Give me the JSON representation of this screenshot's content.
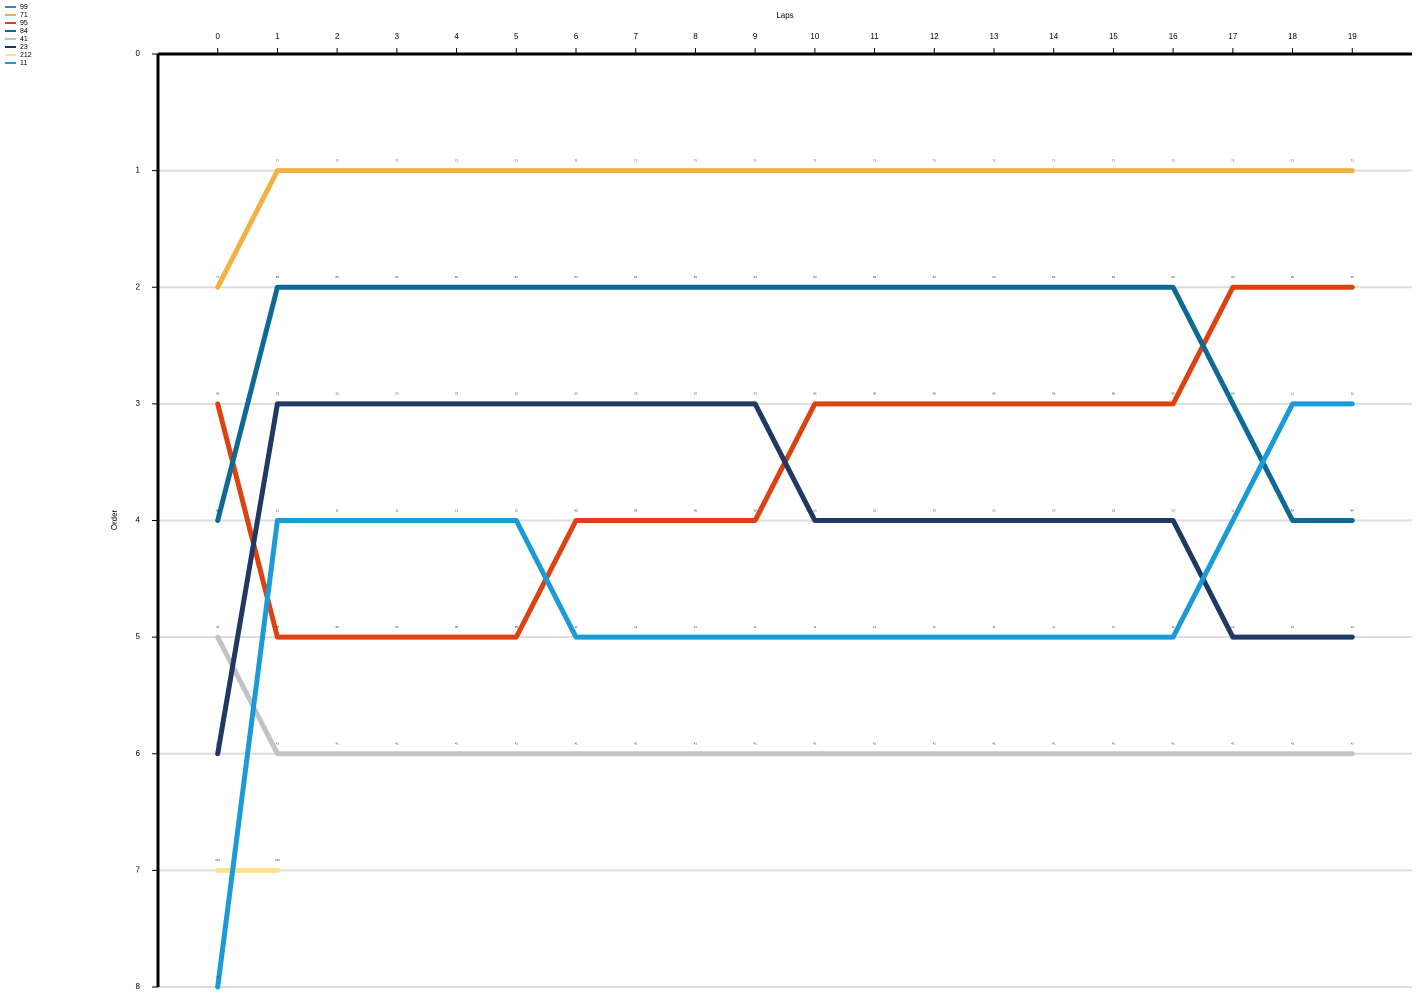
{
  "chart_data": {
    "type": "bump",
    "x_label": "Laps",
    "y_label": "Order",
    "x": [
      0,
      1,
      2,
      3,
      4,
      5,
      6,
      7,
      8,
      9,
      10,
      11,
      12,
      13,
      14,
      15,
      16,
      17,
      18,
      19
    ],
    "xlim": [
      -1,
      20
    ],
    "xticks": [
      0,
      1,
      2,
      3,
      4,
      5,
      6,
      7,
      8,
      9,
      10,
      11,
      12,
      13,
      14,
      15,
      16,
      17,
      18,
      19
    ],
    "ylim": [
      8,
      0
    ],
    "yticks": [
      0,
      1,
      2,
      3,
      4,
      5,
      6,
      7,
      8
    ],
    "grid": true,
    "series": [
      {
        "name": "99",
        "color": "#3d85c6",
        "values": [
          null,
          null,
          null,
          null,
          null,
          null,
          null,
          null,
          null,
          null,
          null,
          null,
          null,
          null,
          null,
          null,
          null,
          null,
          null,
          null
        ]
      },
      {
        "name": "71",
        "color": "#f4b143",
        "values": [
          2,
          1,
          1,
          1,
          1,
          1,
          1,
          1,
          1,
          1,
          1,
          1,
          1,
          1,
          1,
          1,
          1,
          1,
          1,
          1
        ]
      },
      {
        "name": "95",
        "color": "#dc4310",
        "values": [
          3,
          5,
          5,
          5,
          5,
          5,
          4,
          4,
          4,
          4,
          3,
          3,
          3,
          3,
          3,
          3,
          3,
          2,
          2,
          2
        ]
      },
      {
        "name": "84",
        "color": "#0e6a94",
        "values": [
          4,
          2,
          2,
          2,
          2,
          2,
          2,
          2,
          2,
          2,
          2,
          2,
          2,
          2,
          2,
          2,
          2,
          3,
          4,
          4
        ]
      },
      {
        "name": "41",
        "color": "#c3c3c3",
        "values": [
          5,
          6,
          6,
          6,
          6,
          6,
          6,
          6,
          6,
          6,
          6,
          6,
          6,
          6,
          6,
          6,
          6,
          6,
          6,
          6
        ]
      },
      {
        "name": "23",
        "color": "#1f3864",
        "values": [
          6,
          3,
          3,
          3,
          3,
          3,
          3,
          3,
          3,
          3,
          4,
          4,
          4,
          4,
          4,
          4,
          4,
          5,
          5,
          5
        ]
      },
      {
        "name": "212",
        "color": "#fde28c",
        "values": [
          7,
          7,
          null,
          null,
          null,
          null,
          null,
          null,
          null,
          null,
          null,
          null,
          null,
          null,
          null,
          null,
          null,
          null,
          null,
          null
        ]
      },
      {
        "name": "11",
        "color": "#1a9ad6",
        "values": [
          8,
          4,
          4,
          4,
          4,
          4,
          5,
          5,
          5,
          5,
          5,
          5,
          5,
          5,
          5,
          5,
          5,
          4,
          3,
          3
        ]
      }
    ]
  }
}
